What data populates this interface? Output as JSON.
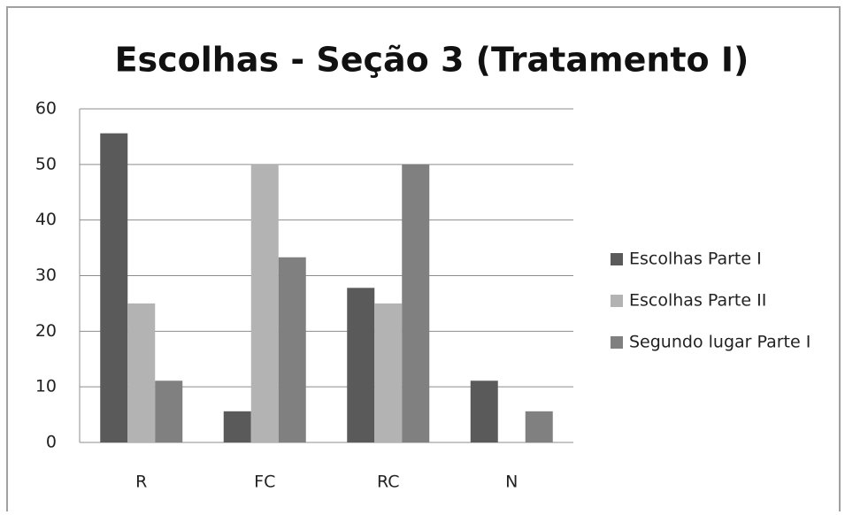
{
  "chart_data": {
    "type": "bar",
    "title": "Escolhas - Seção 3 (Tratamento I)",
    "categories": [
      "R",
      "FC",
      "RC",
      "N"
    ],
    "series": [
      {
        "name": "Escolhas Parte I",
        "color": "#5a5a5a",
        "values": [
          55.6,
          5.6,
          27.8,
          11.1
        ]
      },
      {
        "name": "Escolhas Parte II",
        "color": "#b3b3b3",
        "values": [
          25,
          50,
          25,
          0
        ]
      },
      {
        "name": "Segundo lugar Parte I",
        "color": "#808080",
        "values": [
          11.1,
          33.3,
          50,
          5.6
        ]
      }
    ],
    "ylim": [
      0,
      60
    ],
    "yticks": [
      0,
      10,
      20,
      30,
      40,
      50,
      60
    ],
    "grid": true,
    "legend": "right"
  }
}
